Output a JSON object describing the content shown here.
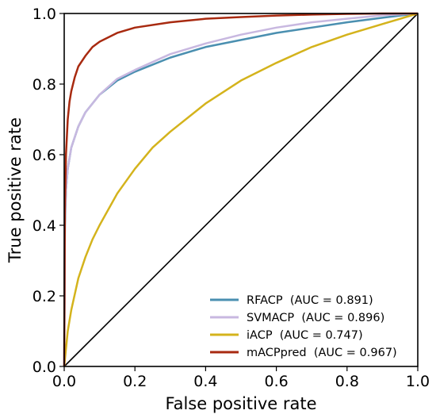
{
  "chart_data": {
    "type": "line",
    "xlabel": "False positive rate",
    "ylabel": "True positive rate",
    "xlim": [
      0,
      1
    ],
    "ylim": [
      0,
      1
    ],
    "xticks": [
      "0.0",
      "0.2",
      "0.4",
      "0.6",
      "0.8",
      "1.0"
    ],
    "yticks": [
      "0.0",
      "0.2",
      "0.4",
      "0.6",
      "0.8",
      "1.0"
    ],
    "grid": false,
    "legend_position": "bottom-right",
    "diagonal_reference_line": true,
    "series": [
      {
        "name": "RFACP  (AUC = 0.891)",
        "color": "#4a8fb0",
        "x": [
          0,
          0.002,
          0.005,
          0.01,
          0.02,
          0.04,
          0.06,
          0.08,
          0.1,
          0.15,
          0.2,
          0.3,
          0.4,
          0.5,
          0.6,
          0.7,
          0.8,
          0.9,
          1.0
        ],
        "y": [
          0,
          0.4,
          0.5,
          0.56,
          0.62,
          0.68,
          0.72,
          0.745,
          0.77,
          0.81,
          0.835,
          0.875,
          0.905,
          0.925,
          0.945,
          0.96,
          0.975,
          0.988,
          1.0
        ]
      },
      {
        "name": "SVMACP  (AUC = 0.896)",
        "color": "#c8b8e0",
        "x": [
          0,
          0.002,
          0.005,
          0.01,
          0.02,
          0.04,
          0.06,
          0.08,
          0.1,
          0.15,
          0.2,
          0.3,
          0.4,
          0.5,
          0.6,
          0.7,
          0.8,
          0.9,
          1.0
        ],
        "y": [
          0,
          0.42,
          0.5,
          0.56,
          0.62,
          0.68,
          0.72,
          0.745,
          0.77,
          0.815,
          0.84,
          0.885,
          0.915,
          0.94,
          0.96,
          0.975,
          0.985,
          0.995,
          1.0
        ]
      },
      {
        "name": "iACP  (AUC = 0.747)",
        "color": "#d4b31c",
        "x": [
          0,
          0.01,
          0.02,
          0.04,
          0.06,
          0.08,
          0.1,
          0.15,
          0.2,
          0.25,
          0.3,
          0.4,
          0.5,
          0.6,
          0.7,
          0.8,
          0.9,
          1.0
        ],
        "y": [
          0,
          0.1,
          0.16,
          0.25,
          0.31,
          0.36,
          0.4,
          0.49,
          0.56,
          0.62,
          0.665,
          0.745,
          0.81,
          0.86,
          0.905,
          0.94,
          0.97,
          1.0
        ]
      },
      {
        "name": "mACPpred  (AUC = 0.967)",
        "color": "#a82a10",
        "x": [
          0,
          0.002,
          0.005,
          0.01,
          0.015,
          0.02,
          0.03,
          0.04,
          0.06,
          0.08,
          0.1,
          0.15,
          0.2,
          0.3,
          0.4,
          0.5,
          0.6,
          0.7,
          0.8,
          0.9,
          1.0
        ],
        "y": [
          0,
          0.45,
          0.6,
          0.7,
          0.75,
          0.78,
          0.82,
          0.85,
          0.88,
          0.905,
          0.92,
          0.945,
          0.96,
          0.975,
          0.985,
          0.99,
          0.994,
          0.997,
          0.999,
          1.0,
          1.0
        ]
      }
    ]
  }
}
